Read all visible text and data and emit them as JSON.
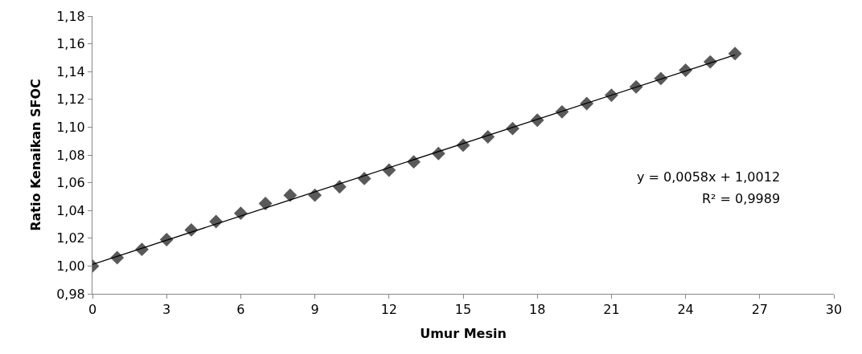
{
  "chart_data": {
    "type": "scatter",
    "xlabel": "Umur Mesin",
    "ylabel": "Ratio Kenaikan SFOC",
    "x": [
      0,
      1,
      2,
      3,
      4,
      5,
      6,
      7,
      8,
      9,
      10,
      11,
      12,
      13,
      14,
      15,
      16,
      17,
      18,
      19,
      20,
      21,
      22,
      23,
      24,
      25,
      26
    ],
    "series": [
      {
        "color": "#595959",
        "marker": "diamond",
        "values": [
          1.0,
          1.006,
          1.012,
          1.019,
          1.026,
          1.032,
          1.038,
          1.045,
          1.051,
          1.051,
          1.057,
          1.063,
          1.069,
          1.075,
          1.081,
          1.087,
          1.093,
          1.099,
          1.105,
          1.111,
          1.117,
          1.123,
          1.129,
          1.135,
          1.141,
          1.147,
          1.153
        ]
      },
      {
        "type": "line",
        "color": "#000000",
        "marker": "none",
        "line_style": "solid",
        "x": [
          0,
          26
        ],
        "values": [
          1.0012,
          1.152
        ]
      }
    ],
    "xlim": [
      0,
      30
    ],
    "xticks": [
      0,
      3,
      6,
      9,
      12,
      15,
      18,
      21,
      24,
      27,
      30
    ],
    "ylim": [
      0.98,
      1.18
    ],
    "yticks": [
      {
        "value": 0.98,
        "label": "0,98"
      },
      {
        "value": 1.0,
        "label": "1,00"
      },
      {
        "value": 1.02,
        "label": "1,02"
      },
      {
        "value": 1.04,
        "label": "1,04"
      },
      {
        "value": 1.06,
        "label": "1,06"
      },
      {
        "value": 1.08,
        "label": "1,08"
      },
      {
        "value": 1.1,
        "label": "1,10"
      },
      {
        "value": 1.12,
        "label": "1,12"
      },
      {
        "value": 1.14,
        "label": "1,14"
      },
      {
        "value": 1.16,
        "label": "1,16"
      },
      {
        "value": 1.18,
        "label": "1,18"
      }
    ],
    "annotations": [
      "y = 0,0058x + 1,0012",
      "R² = 0,9989"
    ],
    "grid": false,
    "legend": false
  }
}
